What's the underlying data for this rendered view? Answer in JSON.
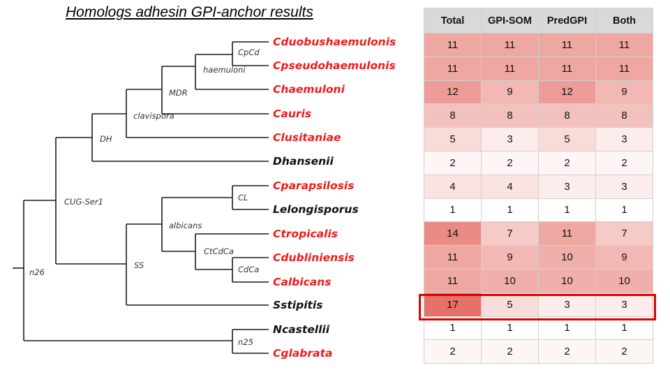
{
  "title": "Homologs adhesin GPI-anchor results",
  "tree": {
    "leaves": [
      {
        "name": "Cduobushaemulonis",
        "color": "#ee1c1c"
      },
      {
        "name": "Cpseudohaemulonis",
        "color": "#ee1c1c"
      },
      {
        "name": "Chaemuloni",
        "color": "#ee1c1c"
      },
      {
        "name": "Cauris",
        "color": "#ee1c1c"
      },
      {
        "name": "Clusitaniae",
        "color": "#ee1c1c"
      },
      {
        "name": "Dhansenii",
        "color": "#111111"
      },
      {
        "name": "Cparapsilosis",
        "color": "#ee1c1c"
      },
      {
        "name": "Lelongisporus",
        "color": "#111111"
      },
      {
        "name": "Ctropicalis",
        "color": "#ee1c1c"
      },
      {
        "name": "Cdubliniensis",
        "color": "#ee1c1c"
      },
      {
        "name": "Calbicans",
        "color": "#ee1c1c"
      },
      {
        "name": "Sstipitis",
        "color": "#111111"
      },
      {
        "name": "Ncastellii",
        "color": "#111111"
      },
      {
        "name": "Cglabrata",
        "color": "#ee1c1c"
      }
    ],
    "nodes": [
      "CpCd",
      "haemuloni",
      "MDR",
      "clavispora",
      "DH",
      "CL",
      "CtCdCa",
      "CdCa",
      "albicans",
      "SS",
      "CUG-Ser1",
      "n25",
      "n26"
    ]
  },
  "table": {
    "headers": [
      "Total",
      "GPI-SOM",
      "PredGPI",
      "Both"
    ],
    "rows": [
      [
        11,
        11,
        11,
        11
      ],
      [
        11,
        11,
        11,
        11
      ],
      [
        12,
        9,
        12,
        9
      ],
      [
        8,
        8,
        8,
        8
      ],
      [
        5,
        3,
        5,
        3
      ],
      [
        2,
        2,
        2,
        2
      ],
      [
        4,
        4,
        3,
        3
      ],
      [
        1,
        1,
        1,
        1
      ],
      [
        14,
        7,
        11,
        7
      ],
      [
        11,
        9,
        10,
        9
      ],
      [
        11,
        10,
        10,
        10
      ],
      [
        17,
        5,
        3,
        3
      ],
      [
        1,
        1,
        1,
        1
      ],
      [
        2,
        2,
        2,
        2
      ]
    ],
    "highlight_row": "Sstipitis",
    "highlight_color": "#e00000",
    "heat_color": "#e0584e"
  }
}
